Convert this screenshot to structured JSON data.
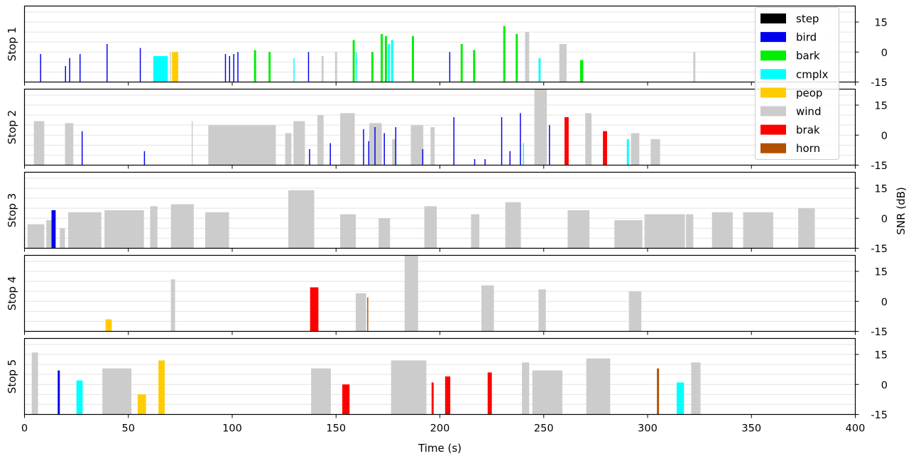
{
  "chart_data": {
    "type": "bar",
    "xlabel": "Time (s)",
    "ylabel": "SNR (dB)",
    "xlim": [
      0,
      400
    ],
    "ylim": [
      -15,
      23
    ],
    "xticks": [
      0,
      50,
      100,
      150,
      200,
      250,
      300,
      350,
      400
    ],
    "yticks": [
      -15,
      0,
      15
    ],
    "grid": "horizontal",
    "legend": {
      "position": "top-right",
      "entries": [
        {
          "name": "step",
          "color": "#000000"
        },
        {
          "name": "bird",
          "color": "#0000ee"
        },
        {
          "name": "bark",
          "color": "#00ee00"
        },
        {
          "name": "cmplx",
          "color": "#00ffff"
        },
        {
          "name": "peop",
          "color": "#ffcc00"
        },
        {
          "name": "wind",
          "color": "#cccccc"
        },
        {
          "name": "brak",
          "color": "#ff0000"
        },
        {
          "name": "horn",
          "color": "#b25000"
        }
      ]
    },
    "panels": [
      {
        "label": "Stop 1",
        "events": [
          {
            "cls": "bird",
            "start": 7.5,
            "end": 8.0,
            "snr": -1
          },
          {
            "cls": "bird",
            "start": 19.5,
            "end": 20.0,
            "snr": -7
          },
          {
            "cls": "bird",
            "start": 21.5,
            "end": 22.0,
            "snr": -3
          },
          {
            "cls": "bird",
            "start": 26.5,
            "end": 27.0,
            "snr": -1
          },
          {
            "cls": "bird",
            "start": 39.5,
            "end": 40.0,
            "snr": 4
          },
          {
            "cls": "bird",
            "start": 55.5,
            "end": 56.0,
            "snr": 2
          },
          {
            "cls": "cmplx",
            "start": 62.0,
            "end": 69.0,
            "snr": -2
          },
          {
            "cls": "wind",
            "start": 70.0,
            "end": 70.5,
            "snr": 0
          },
          {
            "cls": "peop",
            "start": 71.0,
            "end": 74.0,
            "snr": 0
          },
          {
            "cls": "bird",
            "start": 96.5,
            "end": 97.0,
            "snr": -1
          },
          {
            "cls": "bird",
            "start": 98.5,
            "end": 99.0,
            "snr": -2
          },
          {
            "cls": "bird",
            "start": 100.5,
            "end": 101.0,
            "snr": -1
          },
          {
            "cls": "bird",
            "start": 102.5,
            "end": 103.0,
            "snr": 0
          },
          {
            "cls": "bark",
            "start": 110.5,
            "end": 111.5,
            "snr": 1
          },
          {
            "cls": "bark",
            "start": 117.5,
            "end": 118.5,
            "snr": 0
          },
          {
            "cls": "cmplx",
            "start": 129.5,
            "end": 130.0,
            "snr": -3
          },
          {
            "cls": "bird",
            "start": 136.5,
            "end": 137.0,
            "snr": 0
          },
          {
            "cls": "wind",
            "start": 143.0,
            "end": 144.0,
            "snr": -2
          },
          {
            "cls": "wind",
            "start": 149.5,
            "end": 150.5,
            "snr": 0
          },
          {
            "cls": "bark",
            "start": 158.0,
            "end": 159.0,
            "snr": 6
          },
          {
            "cls": "cmplx",
            "start": 159.5,
            "end": 160.0,
            "snr": 0
          },
          {
            "cls": "bark",
            "start": 167.0,
            "end": 168.0,
            "snr": 0
          },
          {
            "cls": "bark",
            "start": 171.5,
            "end": 172.5,
            "snr": 9
          },
          {
            "cls": "bark",
            "start": 173.5,
            "end": 174.5,
            "snr": 8
          },
          {
            "cls": "cmplx",
            "start": 175.0,
            "end": 176.0,
            "snr": 4
          },
          {
            "cls": "cmplx",
            "start": 176.5,
            "end": 177.5,
            "snr": 6
          },
          {
            "cls": "bark",
            "start": 186.5,
            "end": 187.5,
            "snr": 8
          },
          {
            "cls": "bird",
            "start": 204.5,
            "end": 205.0,
            "snr": 0
          },
          {
            "cls": "bark",
            "start": 210.0,
            "end": 211.0,
            "snr": 4
          },
          {
            "cls": "bark",
            "start": 216.0,
            "end": 217.0,
            "snr": 1
          },
          {
            "cls": "bark",
            "start": 230.5,
            "end": 231.5,
            "snr": 13
          },
          {
            "cls": "bark",
            "start": 236.5,
            "end": 237.5,
            "snr": 9
          },
          {
            "cls": "wind",
            "start": 241.0,
            "end": 243.0,
            "snr": 10
          },
          {
            "cls": "cmplx",
            "start": 247.5,
            "end": 248.5,
            "snr": -3
          },
          {
            "cls": "wind",
            "start": 257.5,
            "end": 261.0,
            "snr": 4
          },
          {
            "cls": "bark",
            "start": 267.5,
            "end": 269.0,
            "snr": -4
          },
          {
            "cls": "wind",
            "start": 322.0,
            "end": 323.0,
            "snr": 0
          }
        ]
      },
      {
        "label": "Stop 2",
        "events": [
          {
            "cls": "wind",
            "start": 4.5,
            "end": 9.5,
            "snr": 7
          },
          {
            "cls": "wind",
            "start": 19.5,
            "end": 23.5,
            "snr": 6
          },
          {
            "cls": "bird",
            "start": 27.5,
            "end": 28.0,
            "snr": 2
          },
          {
            "cls": "bird",
            "start": 57.5,
            "end": 58.0,
            "snr": -8
          },
          {
            "cls": "wind",
            "start": 80.5,
            "end": 81.0,
            "snr": 7
          },
          {
            "cls": "wind",
            "start": 88.5,
            "end": 121.0,
            "snr": 5
          },
          {
            "cls": "wind",
            "start": 125.5,
            "end": 128.5,
            "snr": 1
          },
          {
            "cls": "wind",
            "start": 129.5,
            "end": 135.0,
            "snr": 7
          },
          {
            "cls": "bird",
            "start": 137.0,
            "end": 137.5,
            "snr": -7
          },
          {
            "cls": "wind",
            "start": 141.0,
            "end": 144.0,
            "snr": 10
          },
          {
            "cls": "bird",
            "start": 147.0,
            "end": 147.5,
            "snr": -4
          },
          {
            "cls": "wind",
            "start": 152.0,
            "end": 159.0,
            "snr": 11
          },
          {
            "cls": "bird",
            "start": 163.0,
            "end": 163.5,
            "snr": 3
          },
          {
            "cls": "bird",
            "start": 165.5,
            "end": 166.0,
            "snr": -3
          },
          {
            "cls": "wind",
            "start": 166.0,
            "end": 172.0,
            "snr": 6
          },
          {
            "cls": "bird",
            "start": 168.5,
            "end": 169.0,
            "snr": 4
          },
          {
            "cls": "bird",
            "start": 173.0,
            "end": 173.5,
            "snr": 1
          },
          {
            "cls": "wind",
            "start": 177.0,
            "end": 179.0,
            "snr": -2
          },
          {
            "cls": "bird",
            "start": 178.5,
            "end": 179.0,
            "snr": 4
          },
          {
            "cls": "wind",
            "start": 186.0,
            "end": 192.0,
            "snr": 5
          },
          {
            "cls": "bird",
            "start": 191.5,
            "end": 192.0,
            "snr": -7
          },
          {
            "cls": "wind",
            "start": 195.5,
            "end": 197.5,
            "snr": 4
          },
          {
            "cls": "bird",
            "start": 206.5,
            "end": 207.0,
            "snr": 9
          },
          {
            "cls": "bird",
            "start": 216.5,
            "end": 217.0,
            "snr": -12
          },
          {
            "cls": "bird",
            "start": 221.5,
            "end": 222.0,
            "snr": -12
          },
          {
            "cls": "bird",
            "start": 229.5,
            "end": 230.0,
            "snr": 9
          },
          {
            "cls": "bird",
            "start": 233.5,
            "end": 234.0,
            "snr": -8
          },
          {
            "cls": "bird",
            "start": 238.5,
            "end": 239.0,
            "snr": 11
          },
          {
            "cls": "cmplx",
            "start": 240.0,
            "end": 240.5,
            "snr": -4
          },
          {
            "cls": "wind",
            "start": 245.5,
            "end": 251.5,
            "snr": 26
          },
          {
            "cls": "bird",
            "start": 252.5,
            "end": 253.0,
            "snr": 5
          },
          {
            "cls": "brak",
            "start": 260.0,
            "end": 262.0,
            "snr": 9
          },
          {
            "cls": "wind",
            "start": 270.0,
            "end": 273.0,
            "snr": 11
          },
          {
            "cls": "brak",
            "start": 278.5,
            "end": 280.5,
            "snr": 2
          },
          {
            "cls": "cmplx",
            "start": 290.0,
            "end": 291.0,
            "snr": -2
          },
          {
            "cls": "wind",
            "start": 292.0,
            "end": 296.0,
            "snr": 1
          },
          {
            "cls": "wind",
            "start": 301.5,
            "end": 306.0,
            "snr": -2
          }
        ]
      },
      {
        "label": "Stop 3",
        "events": [
          {
            "cls": "wind",
            "start": 1.5,
            "end": 9.5,
            "snr": -3
          },
          {
            "cls": "wind",
            "start": 10.5,
            "end": 13.0,
            "snr": -1
          },
          {
            "cls": "bird",
            "start": 13.0,
            "end": 15.0,
            "snr": 4
          },
          {
            "cls": "wind",
            "start": 17.0,
            "end": 19.5,
            "snr": -5
          },
          {
            "cls": "wind",
            "start": 21.0,
            "end": 37.0,
            "snr": 3
          },
          {
            "cls": "wind",
            "start": 38.5,
            "end": 57.5,
            "snr": 4
          },
          {
            "cls": "wind",
            "start": 60.5,
            "end": 64.0,
            "snr": 6
          },
          {
            "cls": "wind",
            "start": 70.5,
            "end": 81.5,
            "snr": 7
          },
          {
            "cls": "wind",
            "start": 87.0,
            "end": 98.5,
            "snr": 3
          },
          {
            "cls": "wind",
            "start": 127.0,
            "end": 139.5,
            "snr": 14
          },
          {
            "cls": "wind",
            "start": 152.0,
            "end": 159.5,
            "snr": 2
          },
          {
            "cls": "wind",
            "start": 170.5,
            "end": 176.0,
            "snr": 0
          },
          {
            "cls": "wind",
            "start": 192.5,
            "end": 198.5,
            "snr": 6
          },
          {
            "cls": "wind",
            "start": 215.0,
            "end": 219.0,
            "snr": 2
          },
          {
            "cls": "wind",
            "start": 231.5,
            "end": 239.0,
            "snr": 8
          },
          {
            "cls": "wind",
            "start": 261.5,
            "end": 272.0,
            "snr": 4
          },
          {
            "cls": "wind",
            "start": 284.0,
            "end": 297.5,
            "snr": -1
          },
          {
            "cls": "wind",
            "start": 298.5,
            "end": 318.0,
            "snr": 2
          },
          {
            "cls": "wind",
            "start": 318.5,
            "end": 322.0,
            "snr": 2
          },
          {
            "cls": "wind",
            "start": 331.0,
            "end": 341.0,
            "snr": 3
          },
          {
            "cls": "wind",
            "start": 346.0,
            "end": 360.5,
            "snr": 3
          },
          {
            "cls": "wind",
            "start": 372.5,
            "end": 380.5,
            "snr": 5
          }
        ]
      },
      {
        "label": "Stop 4",
        "events": [
          {
            "cls": "peop",
            "start": 39.0,
            "end": 42.0,
            "snr": -9
          },
          {
            "cls": "wind",
            "start": 70.5,
            "end": 72.5,
            "snr": 11
          },
          {
            "cls": "brak",
            "start": 137.5,
            "end": 141.5,
            "snr": 7
          },
          {
            "cls": "wind",
            "start": 159.5,
            "end": 164.5,
            "snr": 4
          },
          {
            "cls": "horn",
            "start": 165.0,
            "end": 165.5,
            "snr": 2
          },
          {
            "cls": "wind",
            "start": 183.0,
            "end": 189.5,
            "snr": 24
          },
          {
            "cls": "wind",
            "start": 220.0,
            "end": 226.0,
            "snr": 8
          },
          {
            "cls": "wind",
            "start": 247.5,
            "end": 251.0,
            "snr": 6
          },
          {
            "cls": "wind",
            "start": 291.0,
            "end": 297.0,
            "snr": 5
          }
        ]
      },
      {
        "label": "Stop 5",
        "events": [
          {
            "cls": "wind",
            "start": 3.5,
            "end": 6.5,
            "snr": 16
          },
          {
            "cls": "bird",
            "start": 16.0,
            "end": 17.0,
            "snr": 7
          },
          {
            "cls": "cmplx",
            "start": 25.0,
            "end": 28.0,
            "snr": 2
          },
          {
            "cls": "wind",
            "start": 37.5,
            "end": 51.5,
            "snr": 8
          },
          {
            "cls": "peop",
            "start": 54.5,
            "end": 58.5,
            "snr": -5
          },
          {
            "cls": "peop",
            "start": 64.5,
            "end": 67.5,
            "snr": 12
          },
          {
            "cls": "wind",
            "start": 138.0,
            "end": 147.5,
            "snr": 8
          },
          {
            "cls": "brak",
            "start": 153.0,
            "end": 156.5,
            "snr": 0
          },
          {
            "cls": "wind",
            "start": 176.5,
            "end": 193.5,
            "snr": 12
          },
          {
            "cls": "brak",
            "start": 196.0,
            "end": 197.0,
            "snr": 1
          },
          {
            "cls": "brak",
            "start": 202.5,
            "end": 205.0,
            "snr": 4
          },
          {
            "cls": "brak",
            "start": 223.0,
            "end": 225.0,
            "snr": 6
          },
          {
            "cls": "wind",
            "start": 239.5,
            "end": 243.0,
            "snr": 11
          },
          {
            "cls": "wind",
            "start": 244.5,
            "end": 259.0,
            "snr": 7
          },
          {
            "cls": "wind",
            "start": 270.5,
            "end": 282.0,
            "snr": 13
          },
          {
            "cls": "horn",
            "start": 304.5,
            "end": 305.5,
            "snr": 8
          },
          {
            "cls": "cmplx",
            "start": 314.0,
            "end": 317.5,
            "snr": 1
          },
          {
            "cls": "wind",
            "start": 321.0,
            "end": 325.5,
            "snr": 11
          }
        ]
      }
    ]
  }
}
